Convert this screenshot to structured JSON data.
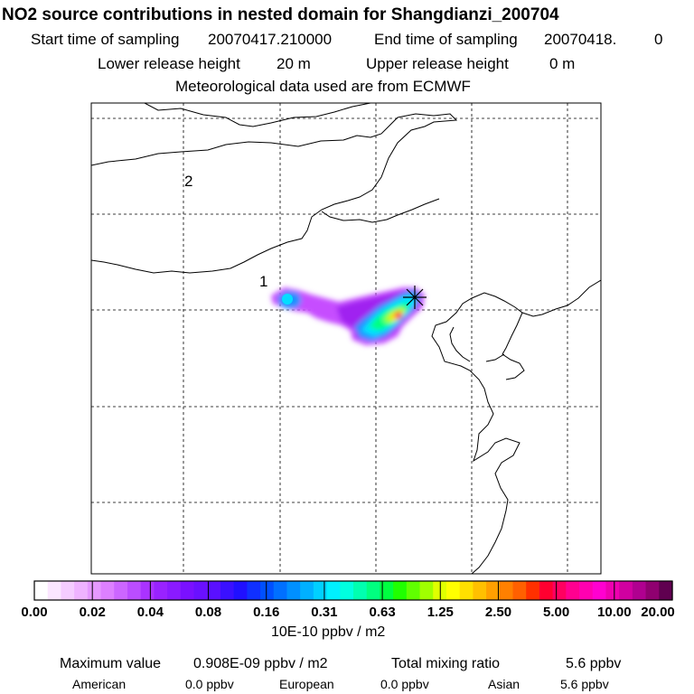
{
  "header": {
    "title": "NO2 source contributions in nested domain for Shangdianzi_200704",
    "start_label": "Start time of sampling",
    "start_value": "20070417.210000",
    "end_label": "End time of sampling",
    "end_value": "20070418.",
    "end_value2": "0",
    "lower_label": "Lower release height",
    "lower_value": "20 m",
    "upper_label": "Upper release height",
    "upper_value": "0 m",
    "meteo": "Meteorological data used are from ECMWF"
  },
  "map": {
    "markers": [
      {
        "label": "1"
      },
      {
        "label": "2"
      }
    ]
  },
  "chart_data": {
    "type": "heatmap",
    "title": "NO2 source contributions in nested domain for Shangdianzi_200704",
    "colorbar": {
      "tick_labels": [
        "0.00",
        "0.02",
        "0.04",
        "0.08",
        "0.16",
        "0.31",
        "0.63",
        "1.25",
        "2.50",
        "5.00",
        "10.00",
        "20.00"
      ],
      "unit": "10E-10 ppbv / m2",
      "colors": [
        "#ffffff",
        "#fbe6ff",
        "#f5ccff",
        "#efb3ff",
        "#e699ff",
        "#dd80ff",
        "#cc66ff",
        "#bb4dff",
        "#aa33ff",
        "#9922ff",
        "#8a1aff",
        "#7a10ff",
        "#6a10ff",
        "#5a10ff",
        "#3a10ff",
        "#2010ff",
        "#1030ff",
        "#0050ff",
        "#0070ff",
        "#0090ff",
        "#00b0ff",
        "#00d0ff",
        "#00f0ff",
        "#00ffe0",
        "#00ffb0",
        "#00ff80",
        "#00ff40",
        "#20ff00",
        "#60ff00",
        "#a0ff00",
        "#e0ff00",
        "#ffff00",
        "#ffe000",
        "#ffc000",
        "#ffa000",
        "#ff8000",
        "#ff6000",
        "#ff3000",
        "#ff0030",
        "#ff0060",
        "#ff0090",
        "#ff00b0",
        "#ff00d0",
        "#ee00b0",
        "#d000a0",
        "#b00090",
        "#900070",
        "#600050"
      ]
    },
    "grid": true,
    "plume_levels": [
      {
        "level": "0.02-0.04",
        "color": "#c64dff"
      },
      {
        "level": "0.04-0.08",
        "color": "#a020f0"
      },
      {
        "level": "0.08-0.16",
        "color": "#1e90ff"
      },
      {
        "level": "0.16-0.31",
        "color": "#00e5ff"
      },
      {
        "level": "0.31-0.63",
        "color": "#00ff80"
      },
      {
        "level": "0.63-1.25",
        "color": "#b0ff00"
      },
      {
        "level": "1.25-2.50",
        "color": "#ffe000"
      },
      {
        "level": "5.00-10.00",
        "color": "#ff0050"
      }
    ]
  },
  "stats": {
    "max_label": "Maximum value",
    "max_value": "0.908E-09 ppbv / m2",
    "total_label": "Total mixing ratio",
    "total_value": "5.6 ppbv",
    "american_label": "American",
    "american_value": "0.0 ppbv",
    "european_label": "European",
    "european_value": "0.0 ppbv",
    "asian_label": "Asian",
    "asian_value": "5.6 ppbv"
  }
}
